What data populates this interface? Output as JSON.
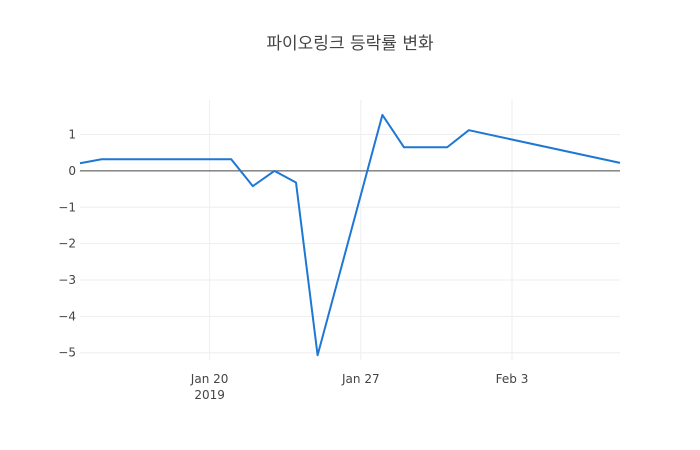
{
  "chart_data": {
    "type": "line",
    "title": "파이오링크 등락률 변화",
    "xlabel": "",
    "ylabel": "",
    "x_ticks": [
      {
        "date": "2019-01-20",
        "label": "Jan 20",
        "sublabel": "2019"
      },
      {
        "date": "2019-01-27",
        "label": "Jan 27",
        "sublabel": ""
      },
      {
        "date": "2019-02-03",
        "label": "Feb 3",
        "sublabel": ""
      }
    ],
    "y_ticks": [
      1,
      0,
      -1,
      -2,
      -3,
      -4,
      -5
    ],
    "y_tick_labels": [
      "1",
      "0",
      "−1",
      "−2",
      "−3",
      "−4",
      "−5"
    ],
    "xlim": [
      "2019-01-14",
      "2019-02-08"
    ],
    "ylim": [
      -5.2,
      1.95
    ],
    "grid": true,
    "zero_line": true,
    "color": "#1f77d4",
    "series": [
      {
        "name": "",
        "points": [
          {
            "x": "2019-01-14",
            "y": 0.21
          },
          {
            "x": "2019-01-15",
            "y": 0.32
          },
          {
            "x": "2019-01-16",
            "y": 0.32
          },
          {
            "x": "2019-01-17",
            "y": 0.32
          },
          {
            "x": "2019-01-18",
            "y": 0.32
          },
          {
            "x": "2019-01-21",
            "y": 0.32
          },
          {
            "x": "2019-01-22",
            "y": -0.42
          },
          {
            "x": "2019-01-23",
            "y": 0.0
          },
          {
            "x": "2019-01-24",
            "y": -0.32
          },
          {
            "x": "2019-01-25",
            "y": -5.07
          },
          {
            "x": "2019-01-28",
            "y": 1.54
          },
          {
            "x": "2019-01-29",
            "y": 0.65
          },
          {
            "x": "2019-01-30",
            "y": 0.65
          },
          {
            "x": "2019-01-31",
            "y": 0.65
          },
          {
            "x": "2019-02-01",
            "y": 1.12
          },
          {
            "x": "2019-02-08",
            "y": 0.22
          }
        ]
      }
    ]
  }
}
